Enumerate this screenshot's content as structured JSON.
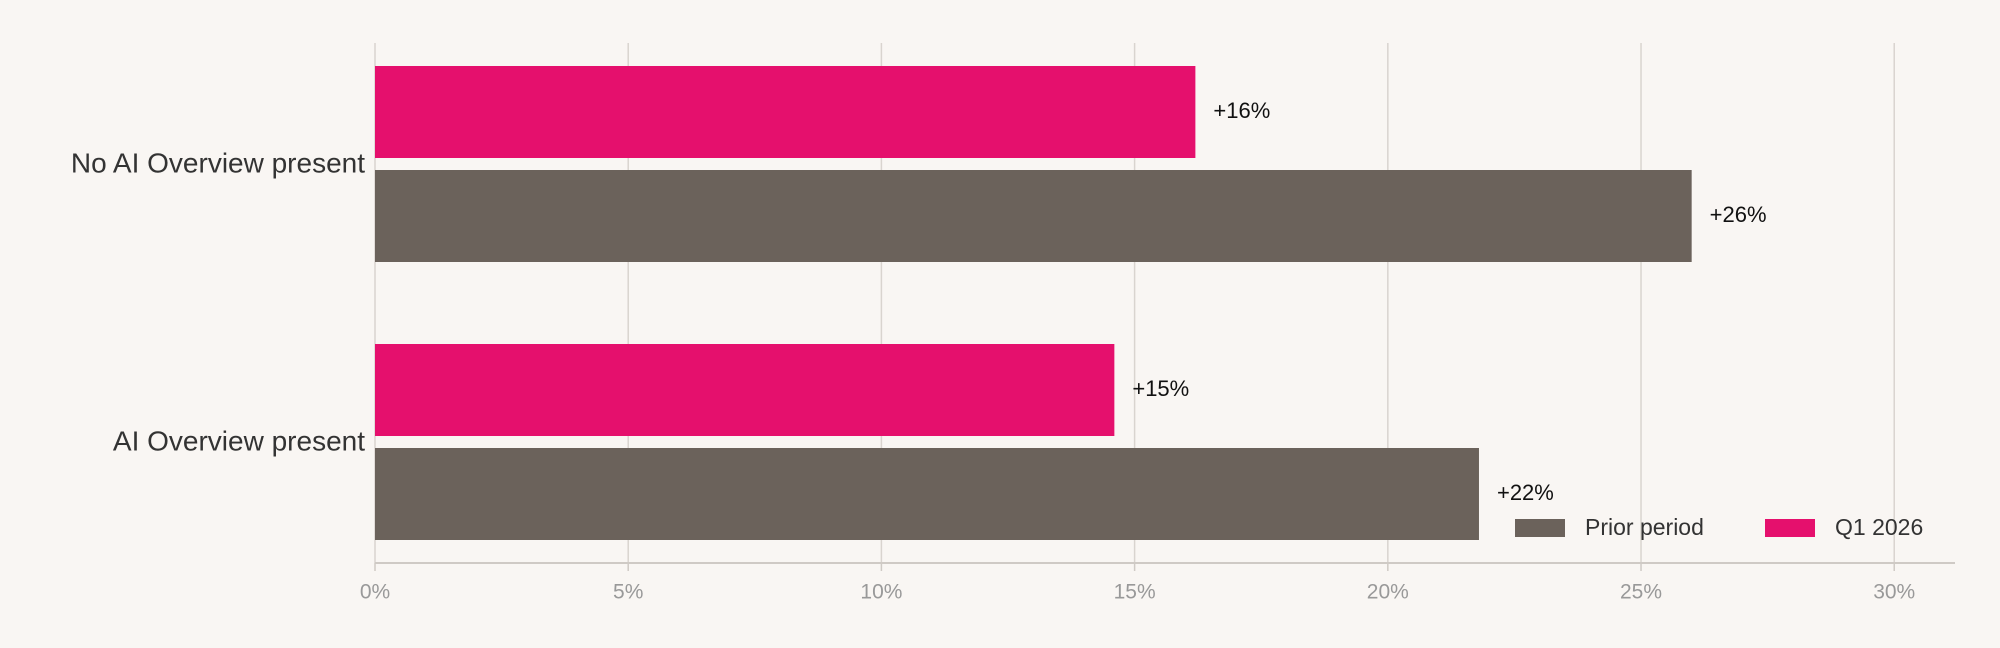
{
  "chart_data": {
    "type": "bar",
    "orientation": "horizontal",
    "categories": [
      "No AI Overview present",
      "AI Overview present"
    ],
    "series": [
      {
        "name": "Prior period",
        "color": "#6b625b",
        "values": [
          26.0,
          21.8
        ],
        "value_labels": [
          "+26%",
          "+22%"
        ]
      },
      {
        "name": "Q1 2026",
        "color": "#e5106d",
        "values": [
          16.2,
          14.6
        ],
        "value_labels": [
          "+16%",
          "+15%"
        ]
      }
    ],
    "xlim": [
      0,
      31.2
    ],
    "xticks": [
      {
        "value": 0,
        "label": "0%"
      },
      {
        "value": 5,
        "label": "5%"
      },
      {
        "value": 10,
        "label": "10%"
      },
      {
        "value": 15,
        "label": "15%"
      },
      {
        "value": 20,
        "label": "20%"
      },
      {
        "value": 25,
        "label": "25%"
      },
      {
        "value": 30,
        "label": "30%"
      }
    ],
    "grid": true,
    "legend": "lower right"
  }
}
